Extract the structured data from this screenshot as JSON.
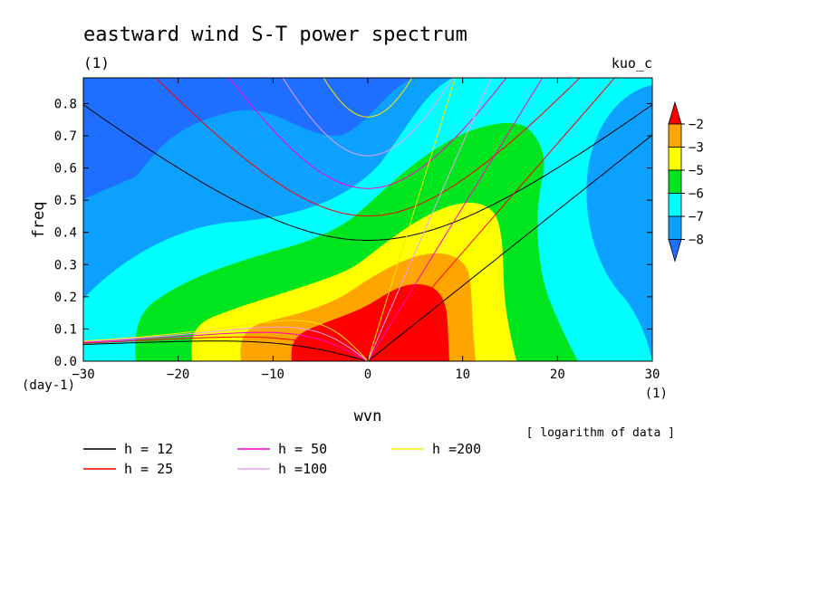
{
  "chart_data": {
    "type": "heatmap",
    "title": "eastward wind S-T power spectrum",
    "subtitle_left": "(1)",
    "subtitle_right": "kuo_c",
    "xlabel": "wvn",
    "ylabel": "freq",
    "x_unit": "(1)",
    "y_unit": "(day-1)",
    "note": "[ logarithm of data ]",
    "xlim": [
      -30,
      30
    ],
    "ylim": [
      0,
      0.88
    ],
    "x_ticks": [
      -30,
      -20,
      -10,
      0,
      10,
      20,
      30
    ],
    "y_ticks": [
      0.0,
      0.1,
      0.2,
      0.3,
      0.4,
      0.5,
      0.6,
      0.7,
      0.8
    ],
    "x_tick_labels": [
      "−30",
      "−20",
      "−10",
      "0",
      "10",
      "20",
      "30"
    ],
    "y_tick_labels": [
      "0.0",
      "0.1",
      "0.2",
      "0.3",
      "0.4",
      "0.5",
      "0.6",
      "0.7",
      "0.8"
    ],
    "colorbar": {
      "levels": [
        -8,
        -7,
        -6,
        -5,
        -3,
        -2
      ],
      "level_labels": [
        "−8",
        "−7",
        "−6",
        "−5",
        "−3",
        "−2"
      ],
      "colors": [
        "#1e6eff",
        "#0ca0ff",
        "#00ffff",
        "#00e61e",
        "#ffff00",
        "#ffa500",
        "#ff0000"
      ]
    },
    "series": [
      {
        "name": "h = 12",
        "color": "#000000",
        "h": 12
      },
      {
        "name": "h = 25",
        "color": "#ff0000",
        "h": 25
      },
      {
        "name": "h = 50",
        "color": "#ff00c8",
        "h": 50
      },
      {
        "name": "h =100",
        "color": "#f0a0f0",
        "h": 100
      },
      {
        "name": "h =200",
        "color": "#ffe600",
        "h": 200
      }
    ]
  }
}
